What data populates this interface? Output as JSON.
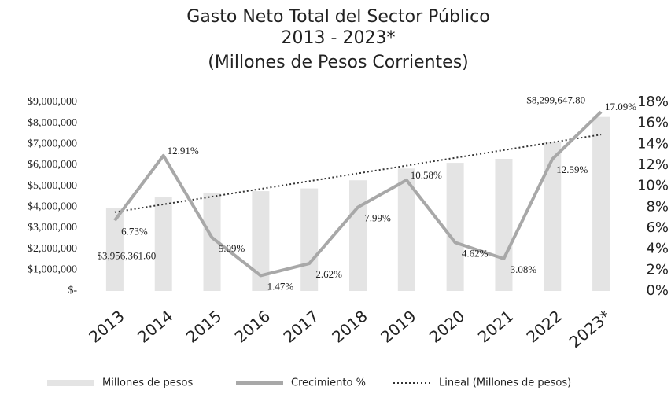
{
  "chart_data": {
    "type": "bar-line",
    "title": [
      "Gasto Neto Total del Sector Público",
      "2013 - 2023*",
      "(Millones de Pesos Corrientes)"
    ],
    "categories": [
      "2013",
      "2014",
      "2015",
      "2016",
      "2017",
      "2018",
      "2019",
      "2020",
      "2021",
      "2022",
      "2023*"
    ],
    "series": [
      {
        "name": "Millones de pesos",
        "color": "#e4e4e4",
        "type": "bar",
        "values": [
          3956361.6,
          4470000,
          4690000,
          4760000,
          4890000,
          5280000,
          5840000,
          6110000,
          6300000,
          7090000,
          8299647.8
        ],
        "value_labels": [
          "$3,956,361.60",
          null,
          null,
          null,
          null,
          null,
          null,
          null,
          null,
          null,
          "$8,299,647.80"
        ]
      },
      {
        "name": "Crecimiento %",
        "color": "#a8a8a8",
        "type": "line",
        "axis": "y2",
        "values": [
          6.73,
          12.91,
          5.09,
          1.47,
          2.62,
          7.99,
          10.58,
          4.62,
          3.08,
          12.59,
          17.09
        ],
        "value_labels": [
          "6.73%",
          "12.91%",
          "5.09%",
          "1.47%",
          "2.62%",
          "7.99%",
          "10.58%",
          "4.62%",
          "3.08%",
          "12.59%",
          "17.09%"
        ]
      }
    ],
    "trendline": {
      "name": "Lineal (Millones de pesos)",
      "color": "#333333",
      "of_series": 0
    },
    "ylim": [
      0,
      9000000
    ],
    "yticks": [
      {
        "value": 0,
        "label": "$-"
      },
      {
        "value": 1000000,
        "label": "$1,000,000"
      },
      {
        "value": 2000000,
        "label": "$2,000,000"
      },
      {
        "value": 3000000,
        "label": "$3,000,000"
      },
      {
        "value": 4000000,
        "label": "$4,000,000"
      },
      {
        "value": 5000000,
        "label": "$5,000,000"
      },
      {
        "value": 6000000,
        "label": "$6,000,000"
      },
      {
        "value": 7000000,
        "label": "$7,000,000"
      },
      {
        "value": 8000000,
        "label": "$8,000,000"
      },
      {
        "value": 9000000,
        "label": "$9,000,000"
      }
    ],
    "y2lim": [
      0,
      18
    ],
    "y2ticks": [
      {
        "value": 0,
        "label": "0%"
      },
      {
        "value": 2,
        "label": "2%"
      },
      {
        "value": 4,
        "label": "4%"
      },
      {
        "value": 6,
        "label": "6%"
      },
      {
        "value": 8,
        "label": "8%"
      },
      {
        "value": 10,
        "label": "10%"
      },
      {
        "value": 12,
        "label": "12%"
      },
      {
        "value": 14,
        "label": "14%"
      },
      {
        "value": 16,
        "label": "16%"
      },
      {
        "value": 18,
        "label": "18%"
      }
    ]
  }
}
